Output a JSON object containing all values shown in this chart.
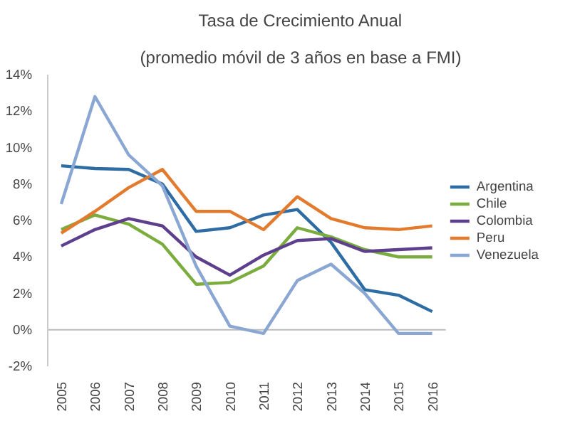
{
  "chart_data": {
    "type": "line",
    "title": "Tasa de Crecimiento Anual",
    "subtitle": "(promedio móvil de 3 años en base a FMI)",
    "categories": [
      "2005",
      "2006",
      "2007",
      "2008",
      "2009",
      "2010",
      "2011",
      "2012",
      "2013",
      "2014",
      "2015",
      "2016"
    ],
    "ylim": [
      -2,
      14
    ],
    "yticks": [
      {
        "value": -2,
        "label": "-2%"
      },
      {
        "value": 0,
        "label": "0%"
      },
      {
        "value": 2,
        "label": "2%"
      },
      {
        "value": 4,
        "label": "4%"
      },
      {
        "value": 6,
        "label": "6%"
      },
      {
        "value": 8,
        "label": "8%"
      },
      {
        "value": 10,
        "label": "10%"
      },
      {
        "value": 12,
        "label": "12%"
      },
      {
        "value": 14,
        "label": "14%"
      }
    ],
    "grid": false,
    "ref_lines": [
      {
        "axis": "y",
        "value": 0,
        "color": "#bbbbbb",
        "line_style": "solid"
      }
    ],
    "legend": "right",
    "marker": "none",
    "series": [
      {
        "name": "Argentina",
        "color": "#2e6ca4",
        "values": [
          9.0,
          8.85,
          8.8,
          8.0,
          5.4,
          5.6,
          6.3,
          6.6,
          4.8,
          2.2,
          1.9,
          1.0
        ]
      },
      {
        "name": "Chile",
        "color": "#7aac3e",
        "values": [
          5.5,
          6.3,
          5.8,
          4.7,
          2.5,
          2.6,
          3.5,
          5.6,
          5.1,
          4.4,
          4.0,
          4.0
        ]
      },
      {
        "name": "Colombia",
        "color": "#5e3f8e",
        "values": [
          4.6,
          5.5,
          6.1,
          5.7,
          4.0,
          3.0,
          4.1,
          4.9,
          5.0,
          4.3,
          4.4,
          4.5
        ]
      },
      {
        "name": "Peru",
        "color": "#e27b2e",
        "values": [
          5.3,
          6.5,
          7.8,
          8.8,
          6.5,
          6.5,
          5.5,
          7.3,
          6.1,
          5.6,
          5.5,
          5.7
        ]
      },
      {
        "name": "Venezuela",
        "color": "#8aa6d2",
        "values": [
          6.9,
          12.8,
          9.6,
          7.9,
          3.5,
          0.2,
          -0.2,
          2.7,
          3.6,
          2.0,
          -0.2,
          -0.2
        ]
      }
    ]
  }
}
